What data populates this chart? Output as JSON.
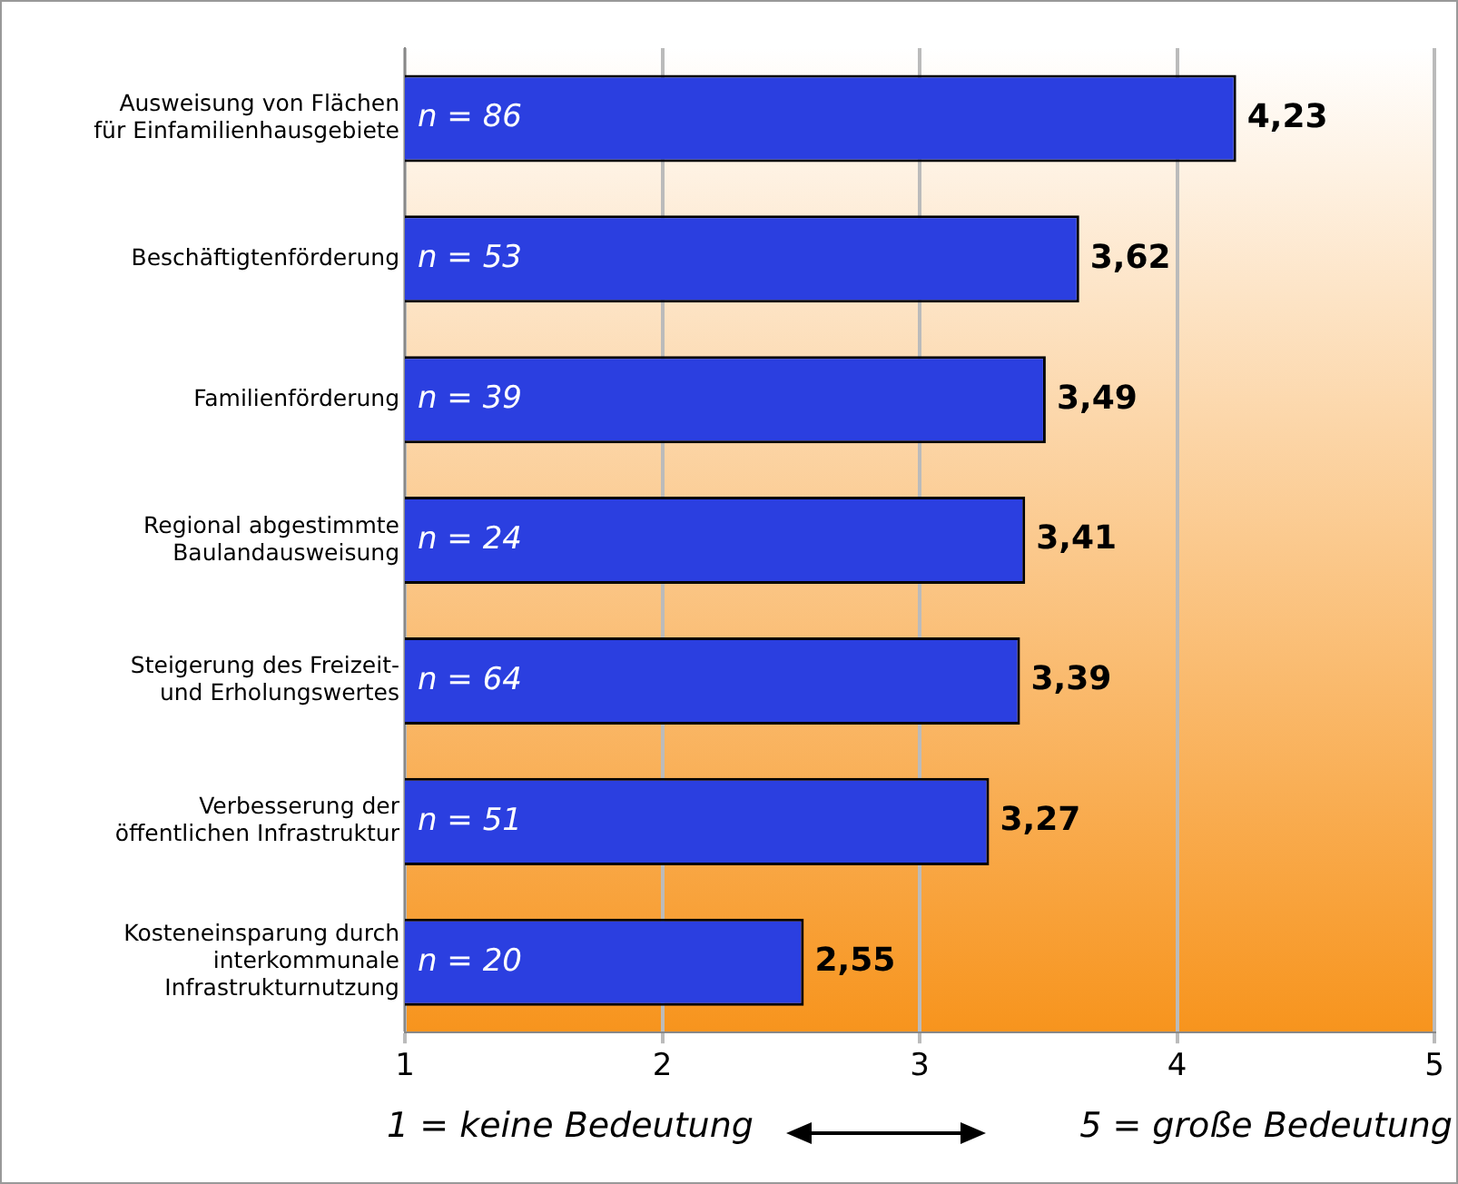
{
  "chart_data": {
    "type": "bar",
    "orientation": "horizontal",
    "categories": [
      "Ausweisung von Flächen\nfür Einfamilienhausgebiete",
      "Beschäftigtenförderung",
      "Familienförderung",
      "Regional abgestimmte\nBaulandausweisung",
      "Steigerung des Freizeit-\nund Erholungswertes",
      "Verbesserung der\nöffentlichen Infrastruktur",
      "Kosteneinsparung durch\ninterkommunale\nInfrastrukturnutzung"
    ],
    "values": [
      4.23,
      3.62,
      3.49,
      3.41,
      3.39,
      3.27,
      2.55
    ],
    "color": "#2b3fe0",
    "xlim": [
      1,
      5
    ],
    "xticks": [
      1,
      2,
      3,
      4,
      5
    ],
    "grid": "x",
    "legend": false,
    "value_labels": [
      "4,23",
      "3,62",
      "3,49",
      "3,41",
      "3,39",
      "3,27",
      "2,55"
    ],
    "annotations": [
      "n = 86",
      "n = 53",
      "n = 39",
      "n = 24",
      "n = 64",
      "n = 51",
      "n = 20",
      "1 = keine Bedeutung",
      "5 = große Bedeutung"
    ]
  }
}
